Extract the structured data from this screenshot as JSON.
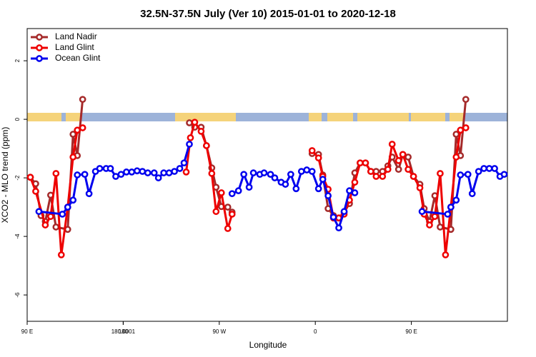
{
  "chart_data": {
    "type": "line",
    "title": "32.5N-37.5N July (Ver 10)   2015-01-01 to 2020-12-18",
    "x_label": "Longitude",
    "y_label": "XCO2 - MLO trend (ppm)",
    "xlim": [
      90,
      540
    ],
    "ylim": [
      -6.9,
      3.1
    ],
    "xticks": [
      {
        "value": 90,
        "label": "90 E"
      },
      180,
      {
        "value": 270,
        "label": "90 W"
      },
      {
        "value": 360,
        "label": "0"
      },
      {
        "value": 450,
        "label": "90 E"
      },
      180.0001
    ],
    "yticks": [
      -6,
      -4,
      -2,
      0,
      2
    ],
    "legend": "top-left",
    "series": [
      {
        "name": "Land Nadir",
        "color": "#a52a2a",
        "x": [
          93,
          98,
          103,
          107,
          112,
          117,
          128,
          133,
          137,
          142,
          200,
          242,
          247,
          253,
          258,
          263,
          267,
          272,
          278,
          282,
          320,
          357,
          363,
          367,
          372,
          377,
          382,
          387,
          392,
          397,
          402,
          407,
          412,
          417,
          423,
          428,
          432,
          438,
          442,
          447,
          452,
          458,
          462,
          467,
          472,
          477,
          487,
          492,
          496,
          501
        ],
        "values": [
          -1.98,
          -2.2,
          -3.29,
          -3.49,
          -2.59,
          -3.68,
          -3.76,
          -0.51,
          -1.24,
          0.68,
          null,
          -0.12,
          -0.27,
          -0.27,
          -0.9,
          -1.66,
          -2.32,
          -2.98,
          -3.0,
          -3.17,
          null,
          -1.17,
          -1.2,
          -1.9,
          -3.05,
          -3.29,
          -3.37,
          -3.17,
          -2.88,
          -1.83,
          -1.49,
          -1.49,
          -1.78,
          -1.78,
          -1.78,
          -1.59,
          -1.29,
          -1.71,
          -1.2,
          -1.29,
          -1.95,
          -2.22,
          -3.05,
          -3.49,
          -2.61,
          -3.68,
          -3.76,
          -0.51,
          -1.24,
          0.68
        ]
      },
      {
        "name": "Land Glint",
        "color": "#ee0000",
        "x": [
          93,
          98,
          107,
          112,
          117,
          122,
          128,
          133,
          137,
          142,
          200,
          239,
          243,
          247,
          253,
          258,
          263,
          267,
          272,
          278,
          282,
          320,
          357,
          363,
          367,
          372,
          377,
          382,
          387,
          392,
          397,
          402,
          407,
          412,
          417,
          423,
          428,
          432,
          438,
          442,
          447,
          452,
          458,
          462,
          467,
          472,
          477,
          482,
          487,
          492,
          496,
          501
        ],
        "values": [
          -1.98,
          -2.46,
          -3.61,
          -3.32,
          -1.85,
          -4.63,
          -3.0,
          -1.29,
          -0.37,
          -0.29,
          null,
          -1.8,
          -0.63,
          -0.1,
          -0.41,
          -0.9,
          -1.85,
          -3.15,
          -2.51,
          -3.73,
          -3.24,
          null,
          -1.07,
          -1.32,
          -1.95,
          -2.39,
          -3.37,
          -3.37,
          -3.24,
          -2.76,
          -2.15,
          -1.49,
          -1.49,
          -1.78,
          -1.95,
          -1.95,
          -1.71,
          -0.85,
          -1.41,
          -1.2,
          -1.71,
          -1.95,
          -2.34,
          -3.24,
          -3.61,
          -3.32,
          -1.85,
          -4.63,
          -3.0,
          -1.29,
          -0.37,
          -0.29
        ]
      },
      {
        "name": "Ocean Glint",
        "color": "#0000ee",
        "x": [
          101,
          123,
          128,
          133,
          137,
          144,
          148,
          154,
          158,
          164,
          168,
          173,
          178,
          183,
          188,
          193,
          198,
          203,
          209,
          213,
          218,
          223,
          228,
          233,
          237,
          242,
          260,
          282,
          288,
          293,
          298,
          302,
          308,
          312,
          318,
          322,
          328,
          332,
          337,
          342,
          347,
          352,
          357,
          363,
          367,
          372,
          377,
          382,
          387,
          392,
          397,
          430,
          460,
          484,
          487,
          492,
          496,
          503,
          507,
          513,
          518,
          523,
          528,
          533,
          537
        ],
        "values": [
          -3.15,
          -3.24,
          -3.0,
          -2.76,
          -1.9,
          -1.88,
          -2.54,
          -1.78,
          -1.68,
          -1.68,
          -1.68,
          -1.95,
          -1.88,
          -1.8,
          -1.8,
          -1.76,
          -1.78,
          -1.83,
          -1.83,
          -2.0,
          -1.83,
          -1.83,
          -1.78,
          -1.68,
          -1.49,
          -0.85,
          null,
          -2.54,
          -2.44,
          -1.88,
          -2.32,
          -1.83,
          -1.88,
          -1.83,
          -1.88,
          -2.0,
          -2.15,
          -2.22,
          -1.88,
          -2.37,
          -1.78,
          -1.73,
          -1.78,
          -2.37,
          -2.05,
          -2.61,
          -3.34,
          -3.71,
          -3.15,
          -2.44,
          -2.51,
          null,
          -3.15,
          -3.24,
          -3.0,
          -2.76,
          -1.9,
          -1.88,
          -2.54,
          -1.78,
          -1.68,
          -1.68,
          -1.68,
          -1.95,
          -1.88
        ]
      }
    ]
  }
}
